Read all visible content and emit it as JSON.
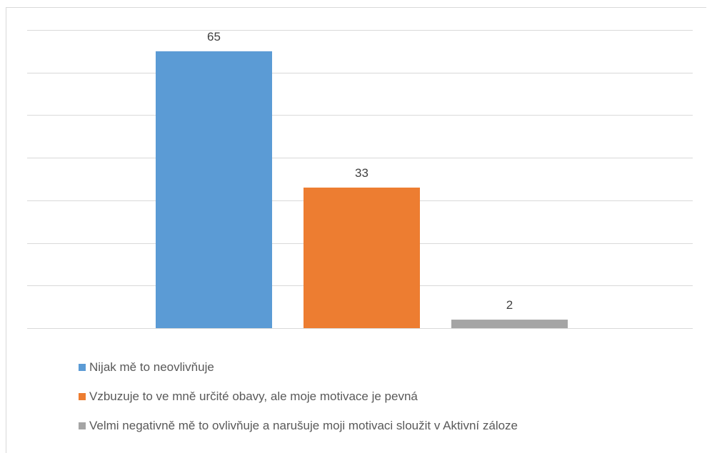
{
  "chart_data": {
    "type": "bar",
    "categories": [
      "Nijak mě to neovlivňuje",
      "Vzbuzuje to ve mně určité obavy, ale moje motivace je pevná",
      "Velmi negativně mě to ovlivňuje a narušuje moji motivaci sloužit v Aktivní záloze"
    ],
    "values": [
      65,
      33,
      2
    ],
    "data_labels": [
      "65",
      "33",
      "2"
    ],
    "colors": [
      "#5B9BD5",
      "#ED7D31",
      "#A5A5A5"
    ],
    "title": "",
    "xlabel": "",
    "ylabel": "",
    "ylim": [
      0,
      70
    ],
    "y_gridline_step": 10,
    "grid": true,
    "y_tick_labels_visible": false,
    "legend_position": "bottom-left"
  },
  "legend": {
    "items": [
      {
        "label": "Nijak mě to neovlivňuje",
        "color": "#5B9BD5"
      },
      {
        "label": "Vzbuzuje to ve mně určité obavy, ale moje motivace je pevná",
        "color": "#ED7D31"
      },
      {
        "label": "Velmi negativně mě to ovlivňuje a narušuje moji motivaci sloužit v Aktivní záloze",
        "color": "#A5A5A5"
      }
    ]
  },
  "style": {
    "gridline_color": "#D9D9D9",
    "label_color": "#404040",
    "frame_color": "#D9D9D9"
  }
}
